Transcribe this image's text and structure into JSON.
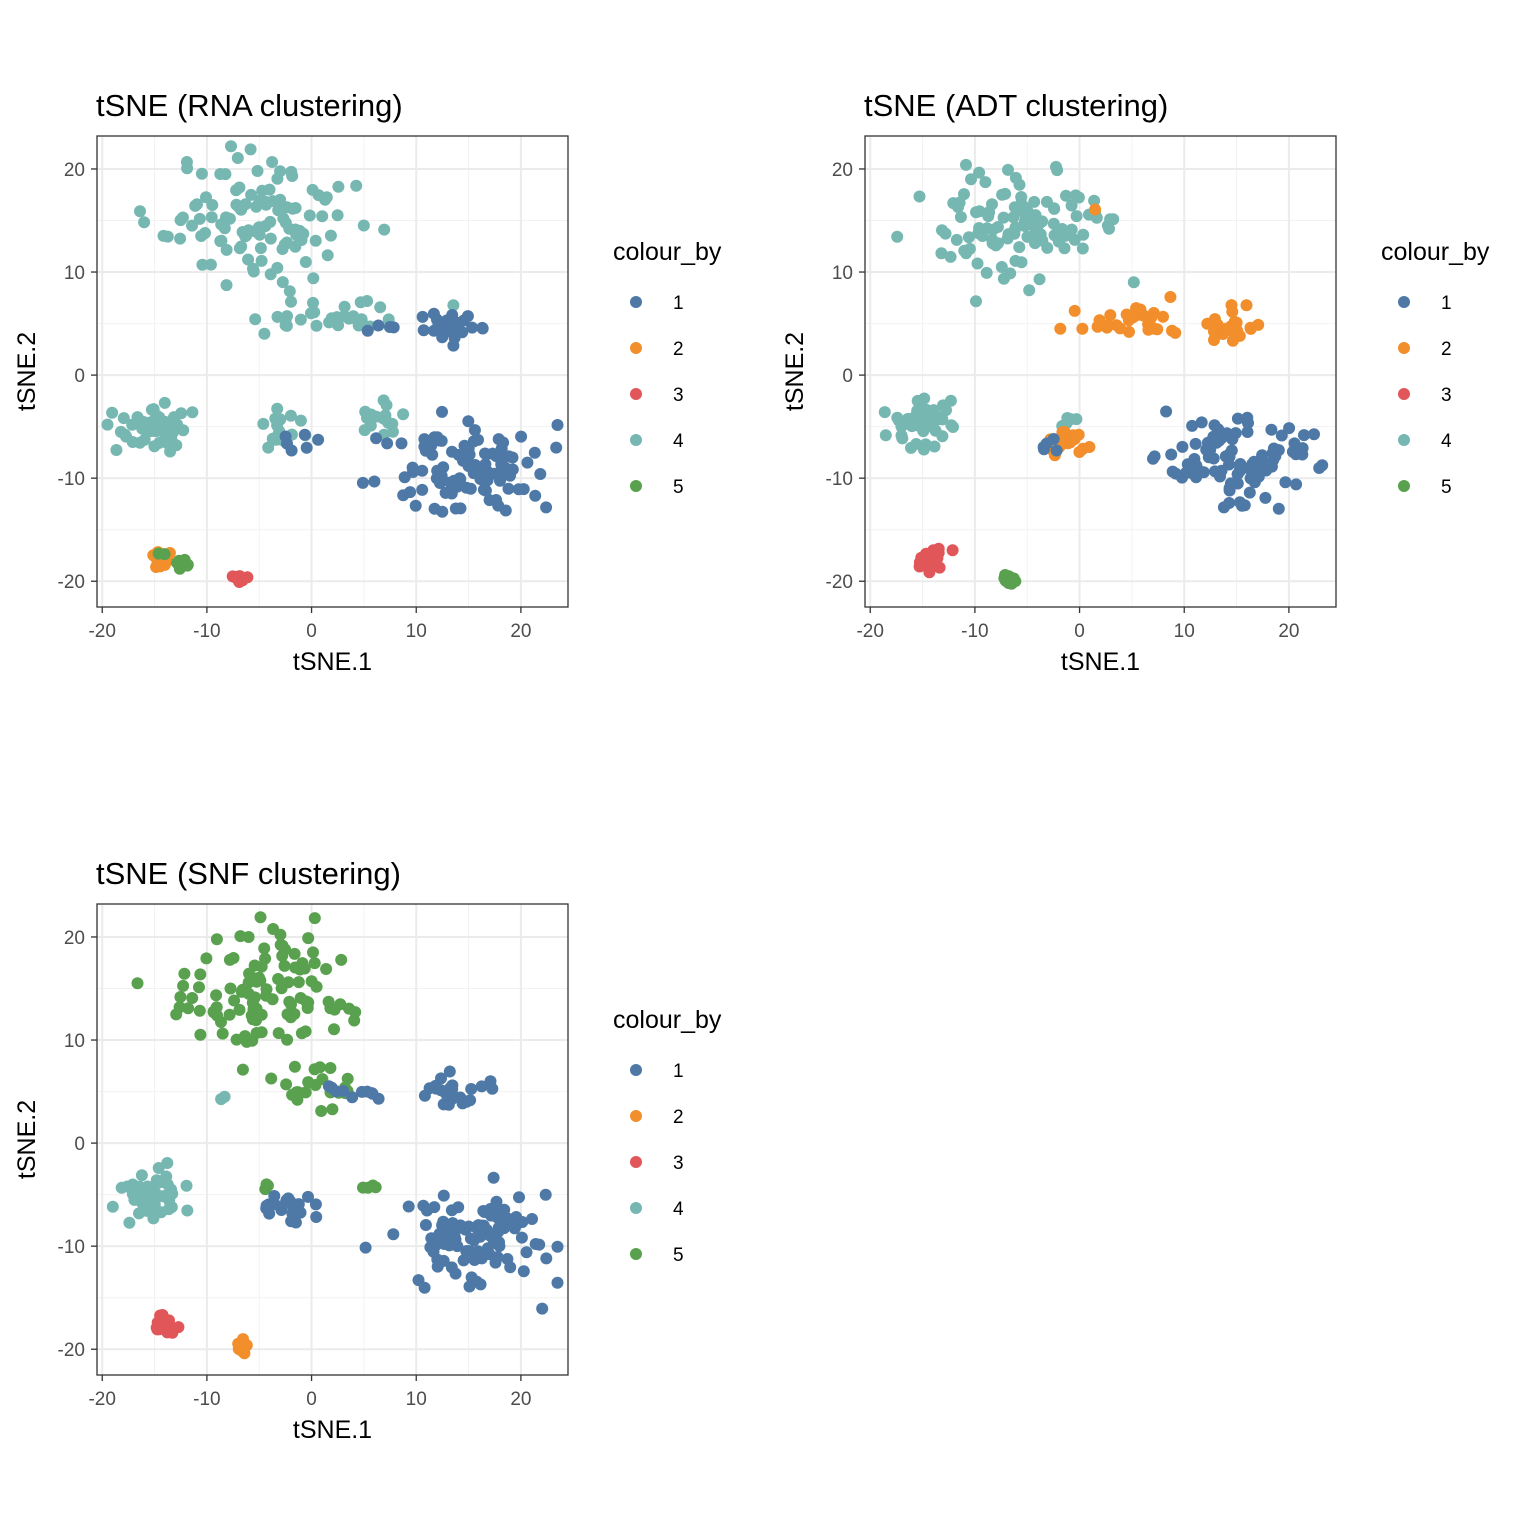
{
  "colors": {
    "1": "#4E79A7",
    "2": "#F28E2B",
    "3": "#E15759",
    "4": "#76B7B2",
    "5": "#59A14F"
  },
  "chart_data": [
    {
      "type": "scatter",
      "title": "tSNE (RNA clustering)",
      "xlabel": "tSNE.1",
      "ylabel": "tSNE.2",
      "xlim": [
        -20.5,
        24.5
      ],
      "ylim": [
        -22.5,
        23.2
      ],
      "xticks": [
        -20,
        -10,
        0,
        10,
        20
      ],
      "yticks": [
        -20,
        -10,
        0,
        10,
        20
      ],
      "xtick_labels": [
        "-20",
        "-10",
        "0",
        "10",
        "20"
      ],
      "ytick_labels": [
        "-20",
        "-10",
        "0",
        "10",
        "20"
      ],
      "grid": true,
      "legend": {
        "title": "colour_by",
        "position": "right",
        "labels": [
          "1",
          "2",
          "3",
          "4",
          "5"
        ]
      },
      "clusters": [
        {
          "group": "4",
          "cx": -5,
          "cy": 15,
          "sx": 5.5,
          "sy": 4.2,
          "n": 110
        },
        {
          "group": "4",
          "cx": 1.5,
          "cy": 5.5,
          "sx": 4.5,
          "sy": 1.3,
          "n": 32
        },
        {
          "group": "4",
          "cx": -15,
          "cy": -5,
          "sx": 2.2,
          "sy": 1.7,
          "n": 45
        },
        {
          "group": "4",
          "cx": -3,
          "cy": -5.5,
          "sx": 1.8,
          "sy": 1.2,
          "n": 16
        },
        {
          "group": "4",
          "cx": 6.5,
          "cy": -4.5,
          "sx": 1.2,
          "sy": 1.2,
          "n": 16
        },
        {
          "group": "1",
          "cx": 13.5,
          "cy": 5,
          "sx": 2,
          "sy": 1,
          "n": 26
        },
        {
          "group": "1",
          "cx": 7,
          "cy": 4.8,
          "sx": 1,
          "sy": 0.8,
          "n": 4
        },
        {
          "group": "1",
          "cx": -1.5,
          "cy": -6.5,
          "sx": 1.5,
          "sy": 1,
          "n": 6
        },
        {
          "group": "1",
          "cx": 15,
          "cy": -9,
          "sx": 4.5,
          "sy": 2.8,
          "n": 100
        },
        {
          "group": "2",
          "cx": -14.5,
          "cy": -17.5,
          "sx": 0.6,
          "sy": 0.6,
          "n": 14
        },
        {
          "group": "5",
          "cx": -12.5,
          "cy": -18,
          "sx": 1.2,
          "sy": 0.9,
          "n": 9
        },
        {
          "group": "3",
          "cx": -6.7,
          "cy": -19.7,
          "sx": 0.35,
          "sy": 0.35,
          "n": 12
        }
      ]
    },
    {
      "type": "scatter",
      "title": "tSNE (ADT clustering)",
      "xlabel": "tSNE.1",
      "ylabel": "tSNE.2",
      "xlim": [
        -20.5,
        24.5
      ],
      "ylim": [
        -22.5,
        23.2
      ],
      "xticks": [
        -20,
        -10,
        0,
        10,
        20
      ],
      "yticks": [
        -20,
        -10,
        0,
        10,
        20
      ],
      "xtick_labels": [
        "-20",
        "-10",
        "0",
        "10",
        "20"
      ],
      "ytick_labels": [
        "-20",
        "-10",
        "0",
        "10",
        "20"
      ],
      "grid": true,
      "legend": {
        "title": "colour_by",
        "position": "right",
        "labels": [
          "1",
          "2",
          "3",
          "4",
          "5"
        ]
      },
      "clusters": [
        {
          "group": "4",
          "cx": -5,
          "cy": 14.5,
          "sx": 5.5,
          "sy": 4.2,
          "n": 115
        },
        {
          "group": "4",
          "cx": -15,
          "cy": -5,
          "sx": 2.2,
          "sy": 1.7,
          "n": 45
        },
        {
          "group": "4",
          "cx": 0,
          "cy": -4.5,
          "sx": 2,
          "sy": 0.8,
          "n": 5
        },
        {
          "group": "2",
          "cx": 6,
          "cy": 5.2,
          "sx": 4,
          "sy": 1,
          "n": 30
        },
        {
          "group": "2",
          "cx": 14.5,
          "cy": 5,
          "sx": 1.8,
          "sy": 1,
          "n": 24
        },
        {
          "group": "2",
          "cx": 1.6,
          "cy": 16,
          "sx": 0.1,
          "sy": 0.1,
          "n": 1
        },
        {
          "group": "2",
          "cx": -1,
          "cy": -6.5,
          "sx": 1.8,
          "sy": 1,
          "n": 18
        },
        {
          "group": "1",
          "cx": -2.5,
          "cy": -6.8,
          "sx": 1,
          "sy": 0.8,
          "n": 5
        },
        {
          "group": "1",
          "cx": 15,
          "cy": -8.5,
          "sx": 4.8,
          "sy": 3,
          "n": 105
        },
        {
          "group": "3",
          "cx": -14,
          "cy": -17.8,
          "sx": 0.9,
          "sy": 0.7,
          "n": 18
        },
        {
          "group": "5",
          "cx": -6.7,
          "cy": -19.8,
          "sx": 0.35,
          "sy": 0.35,
          "n": 12
        }
      ]
    },
    {
      "type": "scatter",
      "title": "tSNE (SNF clustering)",
      "xlabel": "tSNE.1",
      "ylabel": "tSNE.2",
      "xlim": [
        -20.5,
        24.5
      ],
      "ylim": [
        -22.5,
        23.2
      ],
      "xticks": [
        -20,
        -10,
        0,
        10,
        20
      ],
      "yticks": [
        -20,
        -10,
        0,
        10,
        20
      ],
      "xtick_labels": [
        "-20",
        "-10",
        "0",
        "10",
        "20"
      ],
      "ytick_labels": [
        "-20",
        "-10",
        "0",
        "10",
        "20"
      ],
      "grid": true,
      "legend": {
        "title": "colour_by",
        "position": "right",
        "labels": [
          "1",
          "2",
          "3",
          "4",
          "5"
        ]
      },
      "clusters": [
        {
          "group": "5",
          "cx": -5,
          "cy": 15,
          "sx": 5.5,
          "sy": 4.2,
          "n": 110
        },
        {
          "group": "5",
          "cx": 0,
          "cy": 5.5,
          "sx": 3.5,
          "sy": 1.3,
          "n": 22
        },
        {
          "group": "4",
          "cx": -8.3,
          "cy": 3.8,
          "sx": 0.3,
          "sy": 0.3,
          "n": 2
        },
        {
          "group": "1",
          "cx": 4,
          "cy": 5,
          "sx": 2.5,
          "sy": 0.8,
          "n": 10
        },
        {
          "group": "1",
          "cx": 13.5,
          "cy": 5,
          "sx": 2,
          "sy": 1,
          "n": 26
        },
        {
          "group": "4",
          "cx": -15,
          "cy": -5,
          "sx": 2.2,
          "sy": 1.7,
          "n": 45
        },
        {
          "group": "5",
          "cx": -4.5,
          "cy": -4.3,
          "sx": 0.4,
          "sy": 0.3,
          "n": 3
        },
        {
          "group": "1",
          "cx": -2,
          "cy": -6.3,
          "sx": 1.8,
          "sy": 1.1,
          "n": 20
        },
        {
          "group": "5",
          "cx": 5.8,
          "cy": -4.2,
          "sx": 0.5,
          "sy": 0.5,
          "n": 4
        },
        {
          "group": "1",
          "cx": 15,
          "cy": -9,
          "sx": 4.6,
          "sy": 2.8,
          "n": 105
        },
        {
          "group": "3",
          "cx": -14,
          "cy": -17.6,
          "sx": 0.9,
          "sy": 0.7,
          "n": 18
        },
        {
          "group": "2",
          "cx": -6.7,
          "cy": -19.8,
          "sx": 0.35,
          "sy": 0.35,
          "n": 12
        }
      ]
    }
  ]
}
